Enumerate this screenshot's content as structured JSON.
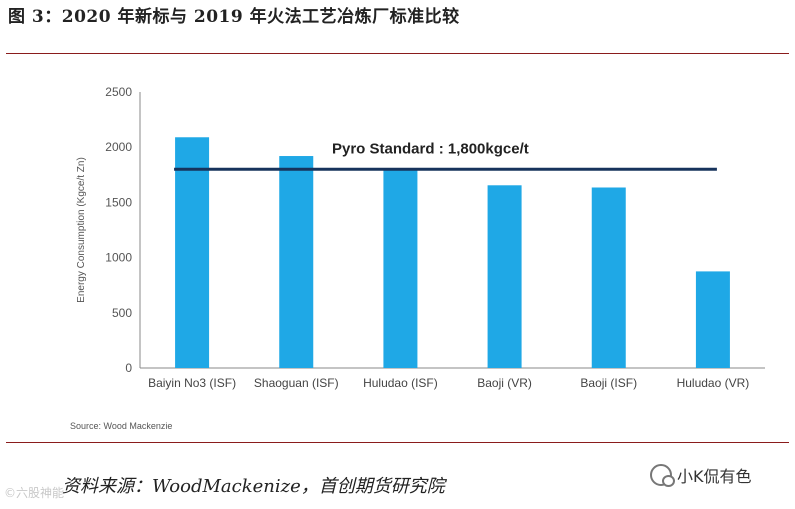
{
  "figure_title": "图 3：2020 年新标与 2019 年火法工艺冶炼厂标准比较",
  "caption": "资料来源：WoodMackenize，首创期货研究院",
  "source_note": "Source: Wood Mackenzie",
  "wechat_account": "小K侃有色",
  "watermark": "©六股神能",
  "colors": {
    "bar": "#1fa8e6",
    "standard_line": "#17335c",
    "rule": "#8a1c1c"
  },
  "chart_data": {
    "type": "bar",
    "categories": [
      "Baiyin No3 (ISF)",
      "Shaoguan (ISF)",
      "Huludao (ISF)",
      "Baoji (VR)",
      "Baoji (ISF)",
      "Huludao (VR)"
    ],
    "values": [
      2090,
      1920,
      1800,
      1655,
      1635,
      875
    ],
    "ylabel": "Energy Consumption (Kgce/t Zn)",
    "ylim": [
      0,
      2500
    ],
    "yticks": [
      0,
      500,
      1000,
      1500,
      2000,
      2500
    ],
    "grid": false,
    "reference_line": {
      "label": "Pyro Standard : 1,800kgce/t",
      "value": 1800
    }
  }
}
